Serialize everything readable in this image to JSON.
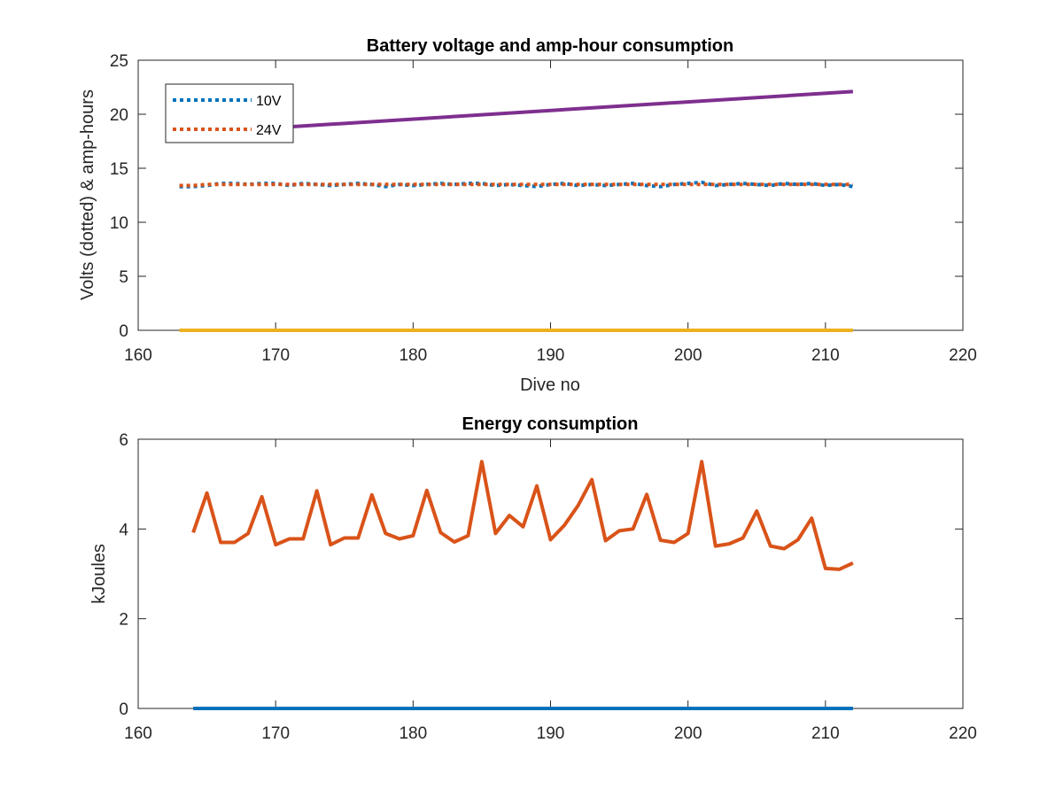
{
  "chart_data": [
    {
      "type": "line",
      "title": "Battery voltage and amp-hour consumption",
      "xlabel": "Dive no",
      "ylabel": "Volts (dotted) & amp-hours",
      "xlim": [
        160,
        220
      ],
      "ylim": [
        0,
        25
      ],
      "xticks": [
        160,
        170,
        180,
        190,
        200,
        210,
        220
      ],
      "yticks": [
        0,
        5,
        10,
        15,
        20,
        25
      ],
      "grid": false,
      "legend": {
        "placement": "top-left"
      },
      "series": [
        {
          "name": "10V",
          "style": "dotted",
          "color": "#0072BD",
          "x": [
            163,
            164,
            165,
            166,
            167,
            168,
            169,
            170,
            171,
            172,
            173,
            174,
            175,
            176,
            177,
            178,
            179,
            180,
            181,
            182,
            183,
            184,
            185,
            186,
            187,
            188,
            189,
            190,
            191,
            192,
            193,
            194,
            195,
            196,
            197,
            198,
            199,
            200,
            201,
            202,
            203,
            204,
            205,
            206,
            207,
            208,
            209,
            210,
            211,
            212
          ],
          "values": [
            13.3,
            13.3,
            13.4,
            13.6,
            13.6,
            13.5,
            13.6,
            13.6,
            13.4,
            13.6,
            13.5,
            13.4,
            13.5,
            13.6,
            13.5,
            13.3,
            13.5,
            13.4,
            13.5,
            13.6,
            13.5,
            13.6,
            13.6,
            13.4,
            13.5,
            13.4,
            13.3,
            13.5,
            13.6,
            13.4,
            13.5,
            13.4,
            13.5,
            13.6,
            13.4,
            13.3,
            13.5,
            13.6,
            13.7,
            13.4,
            13.5,
            13.6,
            13.5,
            13.4,
            13.6,
            13.5,
            13.6,
            13.4,
            13.5,
            13.3
          ]
        },
        {
          "name": "24V",
          "style": "dotted",
          "color": "#D95319",
          "x": [
            163,
            164,
            165,
            166,
            167,
            168,
            169,
            170,
            171,
            172,
            173,
            174,
            175,
            176,
            177,
            178,
            179,
            180,
            181,
            182,
            183,
            184,
            185,
            186,
            187,
            188,
            189,
            190,
            191,
            192,
            193,
            194,
            195,
            196,
            197,
            198,
            199,
            200,
            201,
            202,
            203,
            204,
            205,
            206,
            207,
            208,
            209,
            210,
            211,
            212
          ],
          "values": [
            13.4,
            13.4,
            13.5,
            13.5,
            13.5,
            13.5,
            13.5,
            13.5,
            13.5,
            13.5,
            13.5,
            13.5,
            13.5,
            13.5,
            13.5,
            13.5,
            13.5,
            13.5,
            13.5,
            13.5,
            13.5,
            13.5,
            13.5,
            13.5,
            13.5,
            13.5,
            13.5,
            13.5,
            13.5,
            13.5,
            13.5,
            13.5,
            13.5,
            13.5,
            13.5,
            13.5,
            13.5,
            13.5,
            13.5,
            13.5,
            13.5,
            13.5,
            13.5,
            13.5,
            13.5,
            13.5,
            13.5,
            13.5,
            13.5,
            13.5
          ]
        },
        {
          "style": "solid",
          "color": "#EDB120",
          "x": [
            163,
            212
          ],
          "values": [
            0,
            0
          ]
        },
        {
          "style": "solid",
          "color": "#7E2F8E",
          "x": [
            163,
            212
          ],
          "values": [
            18.2,
            22.1
          ]
        }
      ]
    },
    {
      "type": "line",
      "title": "Energy consumption",
      "xlabel": "",
      "ylabel": "kJoules",
      "xlim": [
        160,
        220
      ],
      "ylim": [
        0,
        6
      ],
      "xticks": [
        160,
        170,
        180,
        190,
        200,
        210,
        220
      ],
      "yticks": [
        0,
        2,
        4,
        6
      ],
      "grid": false,
      "series": [
        {
          "style": "solid",
          "color": "#0072BD",
          "x": [
            164,
            212
          ],
          "values": [
            0,
            0
          ]
        },
        {
          "style": "solid",
          "color": "#D95319",
          "x": [
            164,
            165,
            166,
            167,
            168,
            169,
            170,
            171,
            172,
            173,
            174,
            175,
            176,
            177,
            178,
            179,
            180,
            181,
            182,
            183,
            184,
            185,
            186,
            187,
            188,
            189,
            190,
            191,
            192,
            193,
            194,
            195,
            196,
            197,
            198,
            199,
            200,
            201,
            202,
            203,
            204,
            205,
            206,
            207,
            208,
            209,
            210,
            211,
            212
          ],
          "values": [
            3.92,
            4.8,
            3.7,
            3.7,
            3.9,
            4.72,
            3.65,
            3.78,
            3.78,
            4.85,
            3.65,
            3.8,
            3.8,
            4.76,
            3.9,
            3.78,
            3.85,
            4.86,
            3.92,
            3.71,
            3.85,
            5.5,
            3.9,
            4.3,
            4.05,
            4.96,
            3.76,
            4.08,
            4.52,
            5.1,
            3.74,
            3.96,
            4.0,
            4.77,
            3.75,
            3.7,
            3.9,
            5.5,
            3.62,
            3.67,
            3.8,
            4.4,
            3.62,
            3.56,
            3.76,
            4.24,
            3.12,
            3.1,
            3.24
          ]
        }
      ]
    }
  ]
}
